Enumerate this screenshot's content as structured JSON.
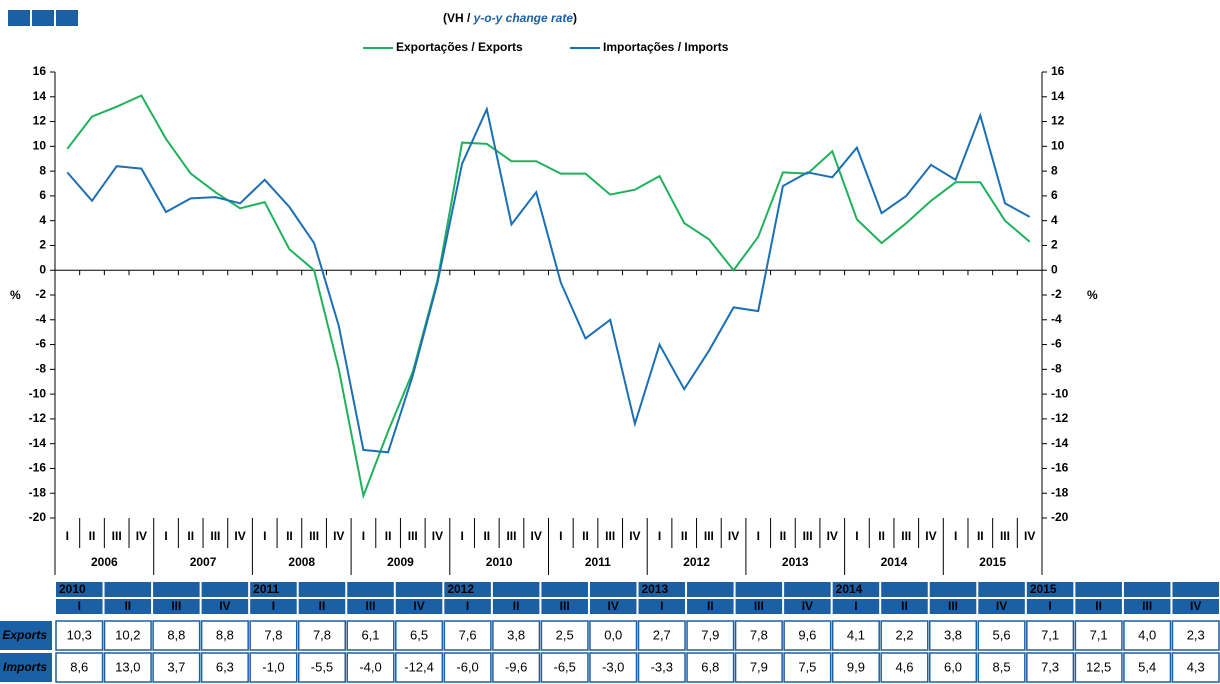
{
  "chart_data": {
    "type": "line",
    "title": [
      "(VH / ",
      "y-o-y change rate",
      ")"
    ],
    "ylabel": "%",
    "y2label": "%",
    "categories": [
      "I",
      "II",
      "III",
      "IV",
      "I",
      "II",
      "III",
      "IV",
      "I",
      "II",
      "III",
      "IV",
      "I",
      "II",
      "III",
      "IV",
      "I",
      "II",
      "III",
      "IV",
      "I",
      "II",
      "III",
      "IV",
      "I",
      "II",
      "III",
      "IV",
      "I",
      "II",
      "III",
      "IV",
      "I",
      "II",
      "III",
      "IV",
      "I",
      "II",
      "III",
      "IV"
    ],
    "groups": [
      "2006",
      "2007",
      "2008",
      "2009",
      "2010",
      "2011",
      "2012",
      "2013",
      "2014",
      "2015"
    ],
    "series": [
      {
        "name": "Exportações / Exports",
        "color": "#1fb25a",
        "values": [
          9.8,
          12.4,
          13.2,
          14.1,
          10.6,
          7.8,
          6.3,
          5.0,
          5.5,
          1.7,
          0.0,
          -8.0,
          -18.2,
          -13.0,
          -8.2,
          -0.8,
          10.3,
          10.2,
          8.8,
          8.8,
          7.8,
          7.8,
          6.1,
          6.5,
          7.6,
          3.8,
          2.5,
          0.0,
          2.7,
          7.9,
          7.8,
          9.6,
          4.1,
          2.2,
          3.8,
          5.6,
          7.1,
          7.1,
          4.0,
          2.3
        ]
      },
      {
        "name": "Importações / Imports",
        "color": "#1b6fb5",
        "values": [
          7.9,
          5.6,
          8.4,
          8.2,
          4.7,
          5.8,
          5.9,
          5.4,
          7.3,
          5.1,
          2.2,
          -4.5,
          -14.5,
          -14.7,
          -8.5,
          -1.0,
          8.6,
          13.0,
          3.7,
          6.3,
          -1.0,
          -5.5,
          -4.0,
          -12.4,
          -6.0,
          -9.6,
          -6.5,
          -3.0,
          -3.3,
          6.8,
          7.9,
          7.5,
          9.9,
          4.6,
          6.0,
          8.5,
          7.3,
          12.5,
          5.4,
          4.3
        ]
      }
    ],
    "ylim": [
      -20,
      16
    ],
    "yticks": [
      -20,
      -18,
      -16,
      -14,
      -12,
      -10,
      -8,
      -6,
      -4,
      -2,
      0,
      2,
      4,
      6,
      8,
      10,
      12,
      14,
      16
    ],
    "y2lim": [
      -20,
      16
    ],
    "y2ticks": [
      -20,
      -18,
      -16,
      -14,
      -12,
      -10,
      -8,
      -6,
      -4,
      -2,
      0,
      2,
      4,
      6,
      8,
      10,
      12,
      14,
      16
    ],
    "legend": "top"
  },
  "table": {
    "years": [
      "2010",
      "2011",
      "2012",
      "2013",
      "2014",
      "2015"
    ],
    "quarters": [
      "I",
      "II",
      "III",
      "IV"
    ],
    "rows": [
      {
        "label": "Exports",
        "cells": [
          "10,3",
          "10,2",
          "8,8",
          "8,8",
          "7,8",
          "7,8",
          "6,1",
          "6,5",
          "7,6",
          "3,8",
          "2,5",
          "0,0",
          "2,7",
          "7,9",
          "7,8",
          "9,6",
          "4,1",
          "2,2",
          "3,8",
          "5,6",
          "7,1",
          "7,1",
          "4,0",
          "2,3"
        ]
      },
      {
        "label": "Imports",
        "cells": [
          "8,6",
          "13,0",
          "3,7",
          "6,3",
          "-1,0",
          "-5,5",
          "-4,0",
          "-12,4",
          "-6,0",
          "-9,6",
          "-6,5",
          "-3,0",
          "-3,3",
          "6,8",
          "7,9",
          "7,5",
          "9,9",
          "4,6",
          "6,0",
          "8,5",
          "7,3",
          "12,5",
          "5,4",
          "4,3"
        ]
      }
    ]
  }
}
